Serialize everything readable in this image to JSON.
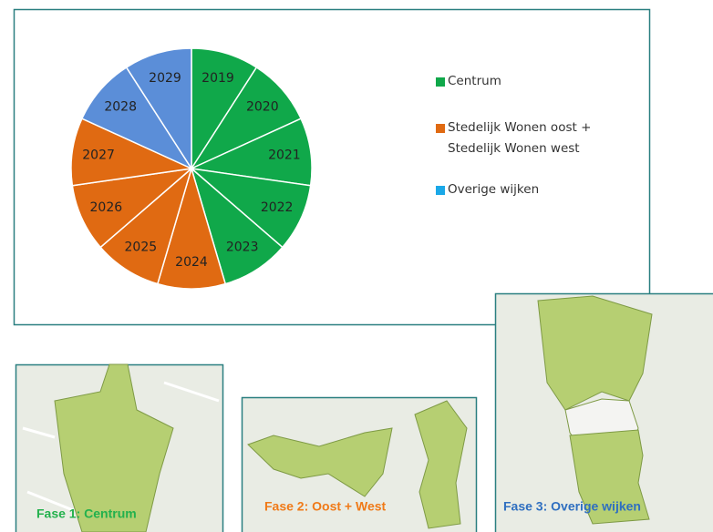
{
  "chart_data": {
    "type": "pie",
    "categories": [
      "2019",
      "2020",
      "2021",
      "2022",
      "2023",
      "2024",
      "2025",
      "2026",
      "2027",
      "2028",
      "2029"
    ],
    "values": [
      1,
      1,
      1,
      1,
      1,
      1,
      1,
      1,
      1,
      1,
      1
    ],
    "colors": [
      "#10a84a",
      "#10a84a",
      "#10a84a",
      "#10a84a",
      "#10a84a",
      "#e06a12",
      "#e06a12",
      "#e06a12",
      "#e06a12",
      "#5b8ed8",
      "#5b8ed8"
    ],
    "legend": [
      {
        "name": "Centrum",
        "color": "#10a84a"
      },
      {
        "name": "Stedelijk Wonen oost + Stedelijk Wonen west",
        "color": "#e06a12"
      },
      {
        "name": "Overige wijken",
        "color": "#1aa8e8"
      }
    ]
  },
  "maps": [
    {
      "caption": "Fase 1: Centrum",
      "color": "#23b14d"
    },
    {
      "caption": "Fase 2:  Oost + West",
      "color": "#f07a18"
    },
    {
      "caption": "Fase 3: Overige wijken",
      "color": "#2f6fc0"
    }
  ]
}
